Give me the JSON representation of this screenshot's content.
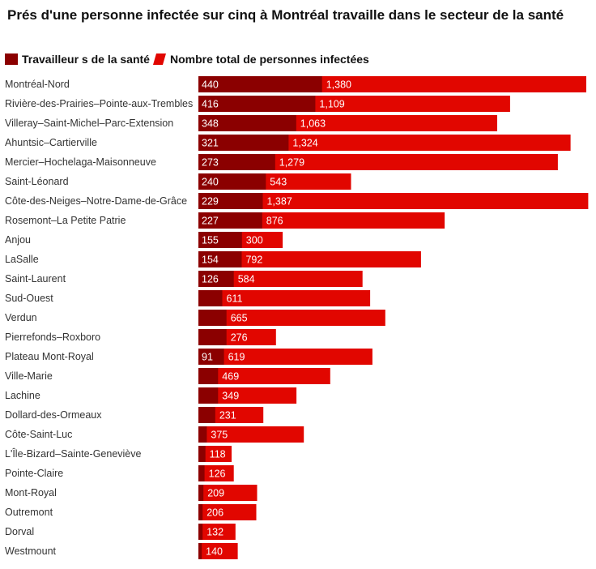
{
  "colors": {
    "health": "#8b0000",
    "total": "#e10600"
  },
  "chart_data": {
    "type": "bar",
    "orientation": "horizontal",
    "title": "Prés d'une personne infectée sur cinq à Montréal travaille dans le secteur de la santé",
    "legend": [
      "Travailleur s  de la santé",
      "Nombre total de personnes infectées"
    ],
    "legend_position": "top-left",
    "grid": false,
    "xlim": [
      0,
      1390
    ],
    "categories": [
      "Montréal-Nord",
      "Rivière-des-Prairies–Pointe-aux-Trembles",
      "Villeray–Saint-Michel–Parc-Extension",
      "Ahuntsic–Cartierville",
      "Mercier–Hochelaga-Maisonneuve",
      "Saint-Léonard",
      "Côte-des-Neiges–Notre-Dame-de-Grâce",
      "Rosemont–La Petite Patrie",
      "Anjou",
      "LaSalle",
      "Saint-Laurent",
      "Sud-Ouest",
      "Verdun",
      "Pierrefonds–Roxboro",
      "Plateau Mont-Royal",
      "Ville-Marie",
      "Lachine",
      "Dollard-des-Ormeaux",
      "Côte-Saint-Luc",
      "L'Île-Bizard–Sainte-Geneviève",
      "Pointe-Claire",
      "Mont-Royal",
      "Outremont",
      "Dorval",
      "Westmount"
    ],
    "series": [
      {
        "name": "Travailleur s  de la santé",
        "values": [
          440,
          416,
          348,
          321,
          273,
          240,
          229,
          227,
          155,
          154,
          126,
          null,
          null,
          null,
          91,
          null,
          null,
          null,
          null,
          null,
          null,
          null,
          null,
          null,
          null
        ],
        "approx_unlabeled": [
          440,
          416,
          348,
          321,
          273,
          240,
          229,
          227,
          155,
          154,
          126,
          85,
          100,
          100,
          91,
          70,
          70,
          60,
          30,
          25,
          22,
          18,
          15,
          15,
          12
        ],
        "labels": [
          "440",
          "416",
          "348",
          "321",
          "273",
          "240",
          "229",
          "227",
          "155",
          "154",
          "126",
          "",
          "",
          "",
          "91",
          "",
          "",
          "",
          "",
          "",
          "",
          "",
          "",
          "",
          ""
        ]
      },
      {
        "name": "Nombre total de personnes infectées",
        "values": [
          1380,
          1109,
          1063,
          1324,
          1279,
          543,
          1387,
          876,
          300,
          792,
          584,
          611,
          665,
          276,
          619,
          469,
          349,
          231,
          375,
          118,
          126,
          209,
          206,
          132,
          140
        ],
        "labels": [
          "1,380",
          "1,109",
          "1,063",
          "1,324",
          "1,279",
          "543",
          "1,387",
          "876",
          "300",
          "792",
          "584",
          "611",
          "665",
          "276",
          "619",
          "469",
          "349",
          "231",
          "375",
          "118",
          "126",
          "209",
          "206",
          "132",
          "140"
        ]
      }
    ]
  }
}
